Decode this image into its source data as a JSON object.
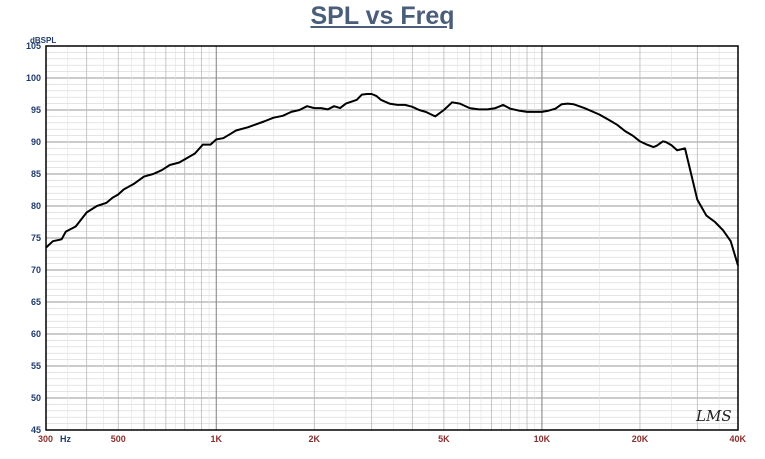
{
  "chart_data": {
    "type": "line",
    "title": "SPL vs Freq",
    "ylabel": "dBSPL",
    "x_scale": "log",
    "xlim": [
      300,
      40000
    ],
    "ylim": [
      45,
      105
    ],
    "y_ticks": [
      45,
      50,
      55,
      60,
      65,
      70,
      75,
      80,
      85,
      90,
      95,
      100,
      105
    ],
    "x_ticks": [
      {
        "value": 300,
        "label": "300"
      },
      {
        "value": 500,
        "label": "500"
      },
      {
        "value": 1000,
        "label": "1K"
      },
      {
        "value": 2000,
        "label": "2K"
      },
      {
        "value": 5000,
        "label": "5K"
      },
      {
        "value": 10000,
        "label": "10K"
      },
      {
        "value": 20000,
        "label": "20K"
      },
      {
        "value": 40000,
        "label": "40K"
      }
    ],
    "x_unit": "Hz",
    "grid": true,
    "watermark": "LMS",
    "series": [
      {
        "color": "#000000",
        "x": [
          300,
          315,
          335,
          345,
          370,
          400,
          430,
          460,
          480,
          500,
          520,
          560,
          600,
          640,
          680,
          720,
          770,
          820,
          860,
          910,
          960,
          1000,
          1050,
          1100,
          1150,
          1250,
          1400,
          1500,
          1600,
          1700,
          1800,
          1900,
          2000,
          2100,
          2200,
          2300,
          2400,
          2500,
          2600,
          2700,
          2800,
          2900,
          3000,
          3100,
          3200,
          3300,
          3400,
          3600,
          3800,
          4000,
          4200,
          4400,
          4700,
          5000,
          5300,
          5600,
          6000,
          6400,
          6800,
          7200,
          7600,
          8000,
          8500,
          9000,
          9500,
          10000,
          10500,
          11000,
          11500,
          12000,
          12500,
          13500,
          15000,
          16000,
          17000,
          18000,
          19000,
          20000,
          21000,
          22000,
          22500,
          23500,
          24000,
          25000,
          26000,
          27500,
          30000,
          32000,
          34000,
          36000,
          38000,
          40000
        ],
        "y": [
          73.5,
          74.5,
          74.8,
          76,
          76.8,
          79,
          80,
          80.5,
          81.3,
          81.8,
          82.6,
          83.5,
          84.6,
          85,
          85.6,
          86.4,
          86.8,
          87.6,
          88.2,
          89.6,
          89.6,
          90.4,
          90.6,
          91.2,
          91.8,
          92.3,
          93.2,
          93.8,
          94.1,
          94.7,
          95,
          95.6,
          95.3,
          95.3,
          95.1,
          95.6,
          95.3,
          96,
          96.3,
          96.6,
          97.4,
          97.5,
          97.5,
          97.2,
          96.6,
          96.3,
          96,
          95.8,
          95.8,
          95.5,
          95,
          94.7,
          94,
          95,
          96.2,
          96,
          95.3,
          95.1,
          95.1,
          95.3,
          95.8,
          95.2,
          94.9,
          94.7,
          94.7,
          94.7,
          94.9,
          95.2,
          95.9,
          96,
          95.9,
          95.3,
          94.3,
          93.5,
          92.7,
          91.7,
          91,
          90.1,
          89.6,
          89.2,
          89.4,
          90.1,
          90,
          89.5,
          88.7,
          89,
          81,
          78.5,
          77.5,
          76.2,
          74.5,
          70.7
        ]
      }
    ]
  }
}
